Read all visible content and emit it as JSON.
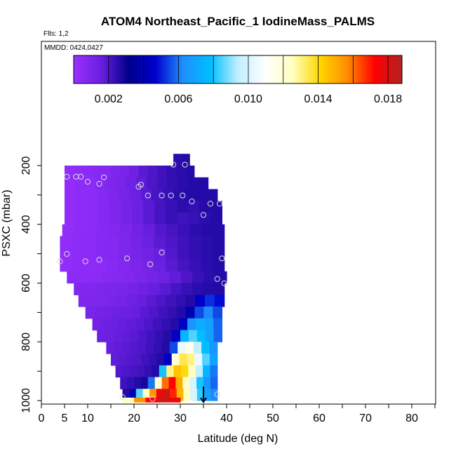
{
  "header": {
    "title": "ATOM4 Northeast_Pacific_1 IodineMass_PALMS",
    "flights": "Flts: 1,2",
    "dates": "MMDD: 0424,0427"
  },
  "chart_data": {
    "type": "heatmap",
    "title": "ATOM4 Northeast_Pacific_1 IodineMass_PALMS",
    "xlabel": "Latitude (deg N)",
    "ylabel": "PSXC (mbar)",
    "xlim": [
      0,
      85
    ],
    "ylim": [
      1010,
      0
    ],
    "x_ticks": [
      0,
      5,
      10,
      20,
      30,
      40,
      50,
      60,
      70,
      80
    ],
    "y_ticks": [
      200,
      400,
      600,
      800,
      1000
    ],
    "colorbar": {
      "range": [
        0,
        0.0188
      ],
      "ticks": [
        "0.002",
        "0.006",
        "0.010",
        "0.014",
        "0.018"
      ],
      "tick_values": [
        0.002,
        0.006,
        0.01,
        0.014,
        0.018
      ],
      "colors": [
        "#9b30ff",
        "#6a1fe0",
        "#00008b",
        "#0000cd",
        "#1e90ff",
        "#00bfff",
        "#bfefff",
        "#ffffff",
        "#ffffc0",
        "#ffd700",
        "#ff8c00",
        "#ff0000",
        "#b22222"
      ]
    },
    "heatmap_rows": [
      {
        "p": 180,
        "lat_min": 28.5,
        "lat_max": 32,
        "values": [
          0.0025,
          0.0026
        ]
      },
      {
        "p": 220,
        "lat_min": 5,
        "lat_max": 33,
        "values": [
          0.0003,
          0.0004,
          0.0005,
          0.0006,
          0.0007,
          0.0009,
          0.0011,
          0.0014,
          0.0018,
          0.002,
          0.0022,
          0.0024,
          0.0025,
          0.0026
        ]
      },
      {
        "p": 260,
        "lat_min": 5,
        "lat_max": 36,
        "values": [
          0.0003,
          0.0004,
          0.0005,
          0.0007,
          0.0009,
          0.0011,
          0.0014,
          0.0017,
          0.002,
          0.0022,
          0.0024,
          0.0025,
          0.0026,
          0.0026
        ]
      },
      {
        "p": 300,
        "lat_min": 5,
        "lat_max": 38,
        "values": [
          0.0003,
          0.0004,
          0.0005,
          0.0007,
          0.0009,
          0.0012,
          0.0015,
          0.0018,
          0.0021,
          0.0023,
          0.0025,
          0.0026,
          0.0026,
          0.0026
        ]
      },
      {
        "p": 340,
        "lat_min": 5,
        "lat_max": 39,
        "values": [
          0.0003,
          0.0004,
          0.0005,
          0.0007,
          0.0009,
          0.0012,
          0.0015,
          0.0018,
          0.0021,
          0.0023,
          0.0025,
          0.0024,
          0.0026,
          0.0026
        ]
      },
      {
        "p": 380,
        "lat_min": 5,
        "lat_max": 39,
        "values": [
          0.0003,
          0.0004,
          0.0005,
          0.0007,
          0.0009,
          0.0012,
          0.0015,
          0.0018,
          0.0021,
          0.0023,
          0.0022,
          0.0023,
          0.0025,
          0.0026
        ]
      },
      {
        "p": 420,
        "lat_min": 4.5,
        "lat_max": 39.5,
        "values": [
          0.0003,
          0.0004,
          0.0005,
          0.0006,
          0.0008,
          0.001,
          0.0013,
          0.0016,
          0.0019,
          0.0021,
          0.0023,
          0.0025,
          0.0026,
          0.0026
        ]
      },
      {
        "p": 460,
        "lat_min": 4,
        "lat_max": 39.5,
        "values": [
          0.0003,
          0.0004,
          0.0005,
          0.0006,
          0.0007,
          0.0009,
          0.0012,
          0.0015,
          0.0018,
          0.002,
          0.0022,
          0.0024,
          0.0025,
          0.0026
        ]
      },
      {
        "p": 500,
        "lat_min": 4,
        "lat_max": 39.5,
        "values": [
          0.0003,
          0.0004,
          0.0005,
          0.0006,
          0.0007,
          0.0009,
          0.0011,
          0.0013,
          0.0016,
          0.0019,
          0.0022,
          0.0024,
          0.0025,
          0.0026
        ]
      },
      {
        "p": 540,
        "lat_min": 4,
        "lat_max": 39.5,
        "values": [
          0.0003,
          0.0004,
          0.0004,
          0.0005,
          0.0006,
          0.0008,
          0.001,
          0.0012,
          0.0015,
          0.0018,
          0.0021,
          0.0023,
          0.0025,
          0.0026
        ]
      },
      {
        "p": 580,
        "lat_min": 5.5,
        "lat_max": 40,
        "values": [
          0.0005,
          0.0005,
          0.0005,
          0.0006,
          0.0007,
          0.0008,
          0.001,
          0.0012,
          0.0014,
          0.0017,
          0.002,
          0.0023,
          0.0025,
          0.0026
        ]
      },
      {
        "p": 620,
        "lat_min": 7,
        "lat_max": 39.5,
        "values": [
          0.0008,
          0.0008,
          0.0009,
          0.001,
          0.0011,
          0.0012,
          0.0014,
          0.0016,
          0.0018,
          0.0021,
          0.0023,
          0.0025,
          0.0026,
          0.0026
        ]
      },
      {
        "p": 660,
        "lat_min": 8,
        "lat_max": 39.5,
        "values": [
          0.0009,
          0.0009,
          0.001,
          0.0011,
          0.0012,
          0.0014,
          0.0016,
          0.0018,
          0.002,
          0.0022,
          0.0024,
          0.0026,
          0.0045,
          0.0052,
          0.0048
        ]
      },
      {
        "p": 700,
        "lat_min": 9.5,
        "lat_max": 39,
        "values": [
          0.0011,
          0.0012,
          0.0013,
          0.0014,
          0.0015,
          0.0016,
          0.0018,
          0.002,
          0.0022,
          0.0024,
          0.0026,
          0.004,
          0.0055,
          0.0062,
          0.0055
        ]
      },
      {
        "p": 740,
        "lat_min": 11,
        "lat_max": 39,
        "values": [
          0.0013,
          0.0014,
          0.0015,
          0.0016,
          0.0017,
          0.0018,
          0.002,
          0.0022,
          0.0024,
          0.0026,
          0.0045,
          0.0065,
          0.0072,
          0.0068,
          0.0058
        ]
      },
      {
        "p": 780,
        "lat_min": 12,
        "lat_max": 39,
        "values": [
          0.0014,
          0.0015,
          0.0016,
          0.0017,
          0.0018,
          0.002,
          0.0022,
          0.0024,
          0.0026,
          0.0045,
          0.0075,
          0.0085,
          0.0078,
          0.0068,
          0.0058
        ]
      },
      {
        "p": 820,
        "lat_min": 14,
        "lat_max": 38,
        "values": [
          0.0016,
          0.0017,
          0.0018,
          0.0019,
          0.002,
          0.0022,
          0.0024,
          0.0026,
          0.0055,
          0.0105,
          0.0115,
          0.0095,
          0.0078,
          0.0065
        ]
      },
      {
        "p": 860,
        "lat_min": 15,
        "lat_max": 38,
        "values": [
          0.0017,
          0.0018,
          0.0019,
          0.002,
          0.0022,
          0.0024,
          0.0026,
          0.0045,
          0.012,
          0.0135,
          0.013,
          0.0105,
          0.0085,
          0.0068
        ]
      },
      {
        "p": 900,
        "lat_min": 16,
        "lat_max": 38,
        "values": [
          0.0019,
          0.002,
          0.0021,
          0.0022,
          0.0024,
          0.0026,
          0.008,
          0.013,
          0.0145,
          0.014,
          0.0125,
          0.0095,
          0.0075,
          0.006
        ]
      },
      {
        "p": 940,
        "lat_min": 17,
        "lat_max": 38,
        "values": [
          0.0022,
          0.0024,
          0.0026,
          0.0028,
          0.006,
          0.012,
          0.016,
          0.0172,
          0.015,
          0.0125,
          0.01,
          0.008,
          0.0065,
          0.0058
        ]
      },
      {
        "p": 980,
        "lat_min": 17.5,
        "lat_max": 38,
        "values": [
          0.0026,
          0.0042,
          0.0085,
          0.0125,
          0.0155,
          0.0175,
          0.0182,
          0.0168,
          0.0148,
          0.0125,
          0.01,
          0.0082,
          0.0068,
          0.0062
        ]
      },
      {
        "p": 1000,
        "lat_min": 17.5,
        "lat_max": 30,
        "values": [
          0.0125,
          0.0155,
          0.0172,
          0.0182,
          0.0176
        ]
      }
    ],
    "sample_points": [
      [
        5.5,
        238
      ],
      [
        7.5,
        238
      ],
      [
        8.5,
        238
      ],
      [
        10,
        255
      ],
      [
        12.5,
        262
      ],
      [
        13.5,
        240
      ],
      [
        21,
        272
      ],
      [
        21.5,
        265
      ],
      [
        23,
        302
      ],
      [
        26,
        302
      ],
      [
        28,
        302
      ],
      [
        30.5,
        302
      ],
      [
        32.5,
        322
      ],
      [
        35,
        368
      ],
      [
        36.5,
        330
      ],
      [
        38.5,
        330
      ],
      [
        28.5,
        197
      ],
      [
        31,
        197
      ],
      [
        26,
        496
      ],
      [
        18.5,
        516
      ],
      [
        23.5,
        536
      ],
      [
        39,
        516
      ],
      [
        12.5,
        521
      ],
      [
        9.5,
        526
      ],
      [
        4,
        526
      ],
      [
        5.5,
        501
      ],
      [
        38,
        586
      ],
      [
        39.5,
        601
      ],
      [
        17.5,
        988
      ],
      [
        24,
        994
      ],
      [
        38,
        979
      ]
    ],
    "marker": {
      "lat": 35,
      "p": 1005
    }
  },
  "colors": {
    "background": "#ffffff",
    "axis": "#000000",
    "marker_point": "#dddddd"
  }
}
